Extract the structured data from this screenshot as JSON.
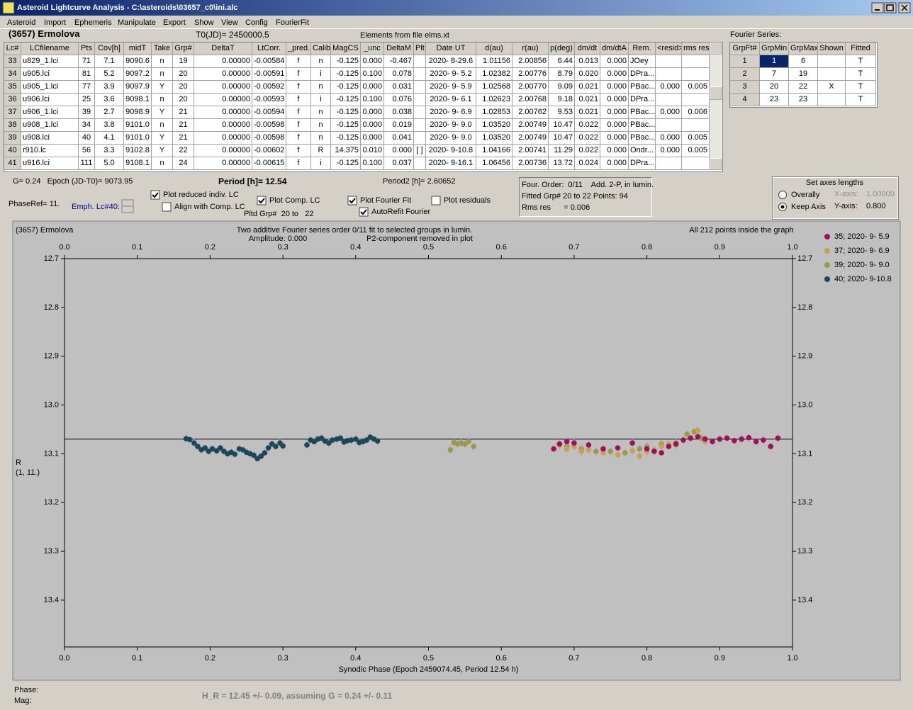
{
  "window": {
    "title": "Asteroid Lightcurve Analysis - C:\\asteroids\\03657_c0\\ini.alc"
  },
  "menu": [
    "Asteroid",
    "Import",
    "Ephemeris",
    "Manipulate",
    "Export",
    "Show",
    "View",
    "Config",
    "FourierFit"
  ],
  "header": {
    "asteroid": "(3657) Ermolova",
    "t0": "T0(JD)= 2450000.5",
    "elements": "Elements from file elms.xt",
    "fourier_label": "Fourier Series:"
  },
  "table": {
    "columns": [
      "Lc#",
      "LCfilename",
      "Pts",
      "Cov[h]",
      "midT",
      "Take",
      "Grp#",
      "DeltaT",
      "LtCorr.",
      "_pred.",
      "Calib.",
      "MagCS",
      "_unc",
      "DeltaM",
      "Plt",
      "Date UT",
      "d(au)",
      "r(au)",
      "p(deg)",
      "dm/dt",
      "dm/dtA",
      "Rem.",
      "<resid>",
      "rms res"
    ],
    "rows": [
      [
        "33",
        "u829_1.lci",
        "71",
        "7.1",
        "9090.6",
        "n",
        "19",
        "0.00000",
        "-0.00584",
        "f",
        "n",
        "-0.125",
        "0.000",
        "-0.467",
        null,
        "2020- 8-29.6",
        "1.01156",
        "2.00856",
        "6.44",
        "0.013",
        "0.000",
        "JOey",
        null,
        null
      ],
      [
        "34",
        "u905.lci",
        "81",
        "5.2",
        "9097.2",
        "n",
        "20",
        "0.00000",
        "-0.00591",
        "f",
        "i",
        "-0.125",
        "0.100",
        "0.078",
        null,
        "2020- 9- 5.2",
        "1.02382",
        "2.00776",
        "8.79",
        "0.020",
        "0.000",
        "DPra...",
        null,
        null
      ],
      [
        "35",
        "u905_1.lci",
        "77",
        "3.9",
        "9097.9",
        "Y",
        "20",
        "0.00000",
        "-0.00592",
        "f",
        "n",
        "-0.125",
        "0.000",
        "0.031",
        null,
        "2020- 9- 5.9",
        "1.02568",
        "2.00770",
        "9.09",
        "0.021",
        "0.000",
        "PBac...",
        "0.000",
        "0.005"
      ],
      [
        "36",
        "u906.lci",
        "25",
        "3.6",
        "9098.1",
        "n",
        "20",
        "0.00000",
        "-0.00593",
        "f",
        "i",
        "-0.125",
        "0.100",
        "0.076",
        null,
        "2020- 9- 6.1",
        "1.02623",
        "2.00768",
        "9.18",
        "0.021",
        "0.000",
        "DPra...",
        null,
        null
      ],
      [
        "37",
        "u906_1.lci",
        "39",
        "2.7",
        "9098.9",
        "Y",
        "21",
        "0.00000",
        "-0.00594",
        "f",
        "n",
        "-0.125",
        "0.000",
        "0.038",
        null,
        "2020- 9- 6.9",
        "1.02853",
        "2.00762",
        "9.53",
        "0.021",
        "0.000",
        "PBac...",
        "0.000",
        "0.006"
      ],
      [
        "38",
        "u908_1.lci",
        "34",
        "3.8",
        "9101.0",
        "n",
        "21",
        "0.00000",
        "-0.00598",
        "f",
        "n",
        "-0.125",
        "0.000",
        "0.019",
        null,
        "2020- 9- 9.0",
        "1.03520",
        "2.00749",
        "10.47",
        "0.022",
        "0.000",
        "PBac...",
        null,
        null
      ],
      [
        "39",
        "u908.lci",
        "40",
        "4.1",
        "9101.0",
        "Y",
        "21",
        "0.00000",
        "-0.00598",
        "f",
        "n",
        "-0.125",
        "0.000",
        "0.041",
        null,
        "2020- 9- 9.0",
        "1.03520",
        "2.00749",
        "10.47",
        "0.022",
        "0.000",
        "PBac...",
        "0.000",
        "0.005"
      ],
      [
        "40",
        "r910.lc",
        "56",
        "3.3",
        "9102.8",
        "Y",
        "22",
        "0.00000",
        "-0.00602",
        "f",
        "R",
        "14.375",
        "0.010",
        "0.000",
        "[ ]",
        "2020- 9-10.8",
        "1.04166",
        "2.00741",
        "11.29",
        "0.022",
        "0.000",
        "Ondr...",
        "0.000",
        "0.005"
      ],
      [
        "41",
        "u916.lci",
        "111",
        "5.0",
        "9108.1",
        "n",
        "24",
        "0.00000",
        "-0.00615",
        "f",
        "i",
        "-0.125",
        "0.100",
        "0.037",
        null,
        "2020- 9-16.1",
        "1.06456",
        "2.00736",
        "13.72",
        "0.024",
        "0.000",
        "DPra...",
        null,
        null
      ]
    ]
  },
  "fourier_table": {
    "columns": [
      "GrpFt#",
      "GrpMin",
      "GrpMax",
      "Shown",
      "Fitted"
    ],
    "rows": [
      [
        "1",
        "1",
        "6",
        null,
        "T"
      ],
      [
        "2",
        "7",
        "19",
        null,
        "T"
      ],
      [
        "3",
        "20",
        "22",
        "X",
        "T"
      ],
      [
        "4",
        "23",
        "23",
        null,
        "T"
      ]
    ]
  },
  "info": {
    "g_epoch": "G= 0.24   Epoch (JD-T0)= 9073.95",
    "period": "Period [h]= 12.54",
    "period2": "Period2 [h]= 2.60652",
    "phase_ref": "PhaseRef= 11.",
    "emph": "Emph. Lc#40:",
    "pltd_grp": "Pltd Grp#  20 to   22"
  },
  "checkboxes": [
    {
      "label": "Plot reduced indiv. LC",
      "checked": true
    },
    {
      "label": "Align with Comp. LC",
      "checked": false
    },
    {
      "label": "Plot Comp. LC",
      "checked": true
    },
    {
      "label": "Plot Fourier Fit",
      "checked": true
    },
    {
      "label": "AutoRefit Fourier",
      "checked": true
    },
    {
      "label": "Plot residuals",
      "checked": false
    }
  ],
  "fit_box": [
    "Four. Order:  0/11    Add. 2-P, in lumin.",
    "Fitted Grp# 20 to 22 Points: 94",
    "Rms res      = 0.006"
  ],
  "axes_group": {
    "title": "Set axes lengths",
    "radios": [
      {
        "label": "Overally",
        "checked": false
      },
      {
        "label": "Keep Axis",
        "checked": true
      }
    ],
    "x_label": "X-axis:",
    "x_value": "1.00000",
    "y_label": "Y-axis:",
    "y_value": "0.800"
  },
  "chart_data": {
    "type": "scatter",
    "title": "(3657) Ermolova",
    "subtitle": "Two additive Fourier series order 0/11 fit to selected groups in lumin.",
    "amplitude": "Amplitude: 0.000",
    "note": "P2-component removed in plot",
    "annotation": "All 212 points inside the graph",
    "xlabel": "Synodic Phase (Epoch 2459074.45, Period 12.54 h)",
    "ylabel": [
      "R",
      "(1, 11.)"
    ],
    "xlim": [
      0,
      1
    ],
    "ylim": [
      12.7,
      13.496
    ],
    "y_inverted": true,
    "xticks": [
      {
        "value": 0,
        "label": "0.0"
      },
      0.1,
      0.2,
      0.3,
      0.4,
      0.5,
      0.6,
      0.7,
      0.8,
      0.9,
      {
        "value": 1,
        "label": "1.0"
      }
    ],
    "yticks": [
      12.7,
      12.8,
      12.9,
      {
        "value": 13,
        "label": "13.0"
      },
      13.1,
      13.2,
      13.3,
      13.4
    ],
    "fit_level": 13.07,
    "series": [
      {
        "name": "35; 2020- 9- 5.9",
        "color": "#a0105a",
        "x": [
          0.672,
          0.68,
          0.69,
          0.7,
          0.72,
          0.74,
          0.76,
          0.78,
          0.8,
          0.81,
          0.82,
          0.83,
          0.84,
          0.85,
          0.86,
          0.87,
          0.88,
          0.89,
          0.9,
          0.91,
          0.92,
          0.93,
          0.94,
          0.95,
          0.96,
          0.97,
          0.98
        ],
        "values": [
          13.09,
          13.08,
          13.075,
          13.078,
          13.082,
          13.09,
          13.088,
          13.078,
          13.09,
          13.095,
          13.098,
          13.085,
          13.08,
          13.072,
          13.068,
          13.065,
          13.07,
          13.075,
          13.07,
          13.068,
          13.073,
          13.07,
          13.067,
          13.075,
          13.072,
          13.085,
          13.068
        ]
      },
      {
        "name": "37; 2020- 9- 6.9",
        "color": "#c8a050",
        "x": [
          0.68,
          0.69,
          0.7,
          0.71,
          0.72,
          0.74,
          0.76,
          0.78,
          0.79,
          0.8,
          0.81,
          0.82,
          0.83,
          0.84,
          0.85,
          0.86,
          0.87,
          0.88
        ],
        "values": [
          13.082,
          13.09,
          13.085,
          13.095,
          13.092,
          13.098,
          13.102,
          13.094,
          13.105,
          13.096,
          13.092,
          13.085,
          13.08,
          13.082,
          13.072,
          13.068,
          13.052,
          13.075
        ]
      },
      {
        "name": "39; 2020- 9- 9.0",
        "color": "#9a9a4a",
        "x": [
          0.53,
          0.535,
          0.54,
          0.545,
          0.55,
          0.555,
          0.562,
          0.69,
          0.71,
          0.73,
          0.75,
          0.77,
          0.79,
          0.8,
          0.82,
          0.84,
          0.855,
          0.865,
          0.875
        ],
        "values": [
          13.092,
          13.077,
          13.08,
          13.078,
          13.08,
          13.075,
          13.085,
          13.085,
          13.09,
          13.095,
          13.095,
          13.098,
          13.09,
          13.085,
          13.08,
          13.078,
          13.06,
          13.055,
          13.068
        ]
      },
      {
        "name": "40; 2020- 9-10.8",
        "color": "#1a4858",
        "x": [
          0.167,
          0.172,
          0.178,
          0.183,
          0.188,
          0.193,
          0.198,
          0.203,
          0.209,
          0.214,
          0.219,
          0.224,
          0.229,
          0.234,
          0.24,
          0.245,
          0.25,
          0.255,
          0.26,
          0.265,
          0.27,
          0.275,
          0.28,
          0.285,
          0.29,
          0.296,
          0.3,
          0.333,
          0.338,
          0.343,
          0.348,
          0.353,
          0.358,
          0.363,
          0.368,
          0.374,
          0.379,
          0.384,
          0.389,
          0.394,
          0.4,
          0.405,
          0.41,
          0.415,
          0.42,
          0.425,
          0.43
        ],
        "values": [
          13.069,
          13.071,
          13.078,
          13.085,
          13.092,
          13.088,
          13.095,
          13.09,
          13.094,
          13.088,
          13.095,
          13.1,
          13.097,
          13.101,
          13.09,
          13.092,
          13.097,
          13.1,
          13.103,
          13.11,
          13.105,
          13.098,
          13.088,
          13.08,
          13.085,
          13.078,
          13.084,
          13.082,
          13.072,
          13.075,
          13.07,
          13.068,
          13.074,
          13.078,
          13.072,
          13.07,
          13.068,
          13.076,
          13.073,
          13.072,
          13.07,
          13.077,
          13.075,
          13.072,
          13.066,
          13.07,
          13.074
        ]
      }
    ]
  },
  "footer": {
    "phase": "Phase:",
    "mag": "Mag:",
    "result": "H_R = 12.45 +/- 0.09, assuming G = 0.24 +/- 0.11"
  }
}
